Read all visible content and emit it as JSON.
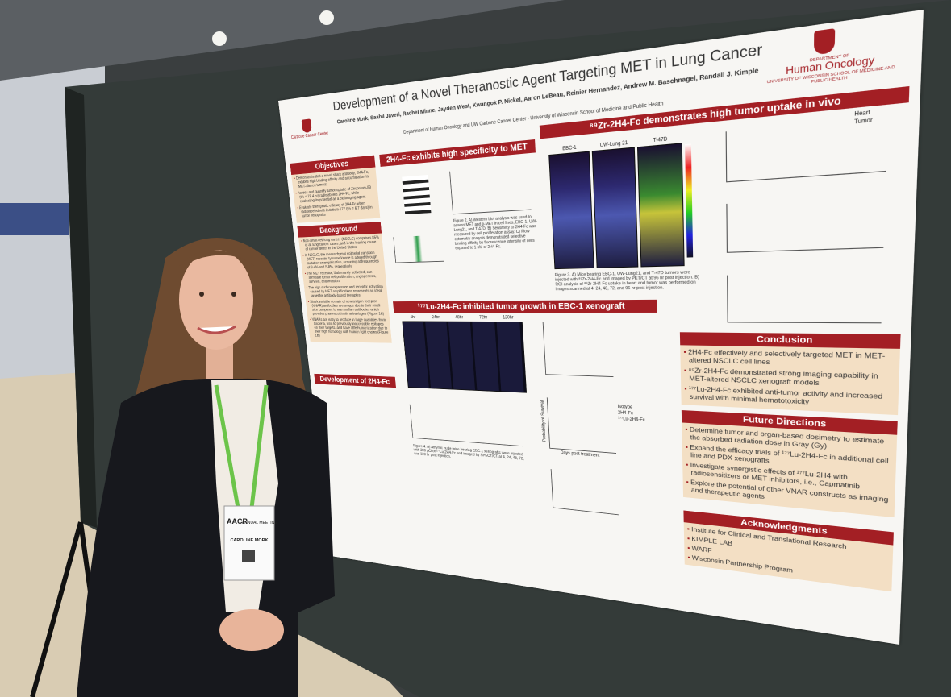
{
  "poster": {
    "title": "Development of a Novel Theranostic Agent Targeting MET in Lung Cancer",
    "authors": "Caroline Mork, Saahil Javeri, Rachel Minne, Jayden West, Kwangok P. Nickel, Aaron LeBeau, Reinier Hernandez, Andrew M. Baschnagel, Randall J. Kimple",
    "affiliation": "Department of Human Oncology and UW Carbone Cancer Center - University of Wisconsin School of Medicine and Public Health",
    "left_logo": "Carbone Cancer Center",
    "right_logo": {
      "department": "DEPARTMENT OF",
      "name": "Human Oncology",
      "school": "UNIVERSITY OF WISCONSIN SCHOOL OF MEDICINE AND PUBLIC HEALTH"
    },
    "sections": [
      {
        "heading": "Objectives",
        "bullets": [
          "Demonstrate that a novel shark antibody, 2H4-Fc, exhibits high binding affinity and accumulation in MET-altered tumors",
          "Assess and quantify tumor uptake of Zirconium-89 (t½ = 78.4 hr) radiolabeled 2H4-Fc, while evaluating its potential as a bioimaging agent",
          "Evaluate therapeutic efficacy of 2H4-Fc when radiolabeled with Lutetium-177 (t½ = 6.7 days) in tumor xenografts"
        ]
      },
      {
        "heading": "Background",
        "bullets": [
          "Non-small cell lung cancer (NSCLC) comprises 85% of all lung cancer cases, and is the leading cause of cancer death in the United States",
          "In NSCLC, the mesenchymal epithelial transition (MET) receptor tyrosine kinase is altered through mutation or amplification, occurring at frequencies of 3-4% and 5-8%, respectively",
          "The MET receptor, if aberrantly activated, can stimulate tumor cell proliferation, angiogenesis, survival, and invasion",
          "The high surface expression and receptor activation caused by MET amplifications represents an ideal target for antibody-based therapies",
          "Shark variable domain of new antigen receptor (VNAR) antibodies are unique due to their small size compared to mammalian antibodies which provides pharmacokinetic advantages (Figure 1A)",
          "VNARs are easy to produce in large quantities from bacteria, bind to previously inaccessible epitopes on their targets, and have little humanization due to their high homology with human light chains (Figure 1B)"
        ]
      },
      {
        "heading": "Development of 2H4-Fc"
      },
      {
        "heading": "2H4-Fc exhibits high specificity to MET",
        "caption": "Figure 2. A) Western blot analysis was used to assess MET and p-MET in cell lines, EBC-1, UW-Lung21, and T-47D. B) Sensitivity to 2H4-Fc was measured by cell proliferation assay. C) Flow cytometry analysis demonstrated selective binding affinity by fluorescence intensity of cells exposed to 1 nM of 2H4-Fc."
      },
      {
        "heading": "⁸⁹Zr-2H4-Fc demonstrates high tumor uptake in vivo",
        "caption": "Figure 3. A) Mice bearing EBC-1, UW-Lung21, and T-47D tumors were injected with ⁸⁹Zr-2H4-Fc and imaged by PET/CT at 96 hr post injection. B) ROI analysis of ⁸⁹Zr-2H4-Fc uptake in heart and tumor was performed on images scanned at 4, 24, 48, 72, and 96 hr post injection."
      },
      {
        "heading": "¹⁷⁷Lu-2H4-Fc inhibited tumor growth in EBC-1 xenograft",
        "caption": "Figure 4. A) Athymic nude mice bearing EBC-1 xenografts were injected with 300 µCi of ¹⁷⁷Lu-2H4-Fc and imaged by SPECT/CT at 4, 24, 48, 72, and 120 hr post injection."
      },
      {
        "heading": "Conclusion",
        "bullets": [
          "2H4-Fc effectively and selectively targeted MET in MET-altered NSCLC cell lines",
          "⁸⁹Zr-2H4-Fc demonstrated strong imaging capability in MET-altered NSCLC xenograft models",
          "¹⁷⁷Lu-2H4-Fc exhibited anti-tumor activity and increased survival with minimal hematotoxicity"
        ]
      },
      {
        "heading": "Future Directions",
        "bullets": [
          "Determine tumor and organ-based dosimetry to estimate the absorbed radiation dose in Gray (Gy)",
          "Expand the efficacy trials of ¹⁷⁷Lu-2H4-Fc in additional cell line and PDX xenografts",
          "Investigate synergistic effects of ¹⁷⁷Lu-2H4 with radiosensitizers or MET inhibitors, i.e., Capmatinib",
          "Explore the potential of other VNAR constructs as imaging and therapeutic agents"
        ]
      },
      {
        "heading": "Acknowledgments",
        "bullets": [
          "Institute for Clinical and Translational Research",
          "KIMPLE LAB",
          "WARF",
          "Wisconsin Partnership Program"
        ]
      }
    ],
    "figure_labels": {
      "cell_lines": [
        "EBC-1",
        "UW-Lung 21",
        "T-47D"
      ],
      "timepoints": [
        "4hr",
        "24hr",
        "48hr",
        "72hr",
        "120hr"
      ],
      "roi_legend": [
        "Heart",
        "Tumor"
      ],
      "treatment_legend": [
        "Isotype",
        "2H4-Fc",
        "¹⁷⁷Lu-2H4-Fc"
      ],
      "survival_axis": "Probability of Survival",
      "time_axis": "Days post treatment"
    }
  },
  "badge": {
    "meeting": "AACR",
    "event": "ANNUAL MEETING",
    "name": "CAROLINE MORK"
  }
}
